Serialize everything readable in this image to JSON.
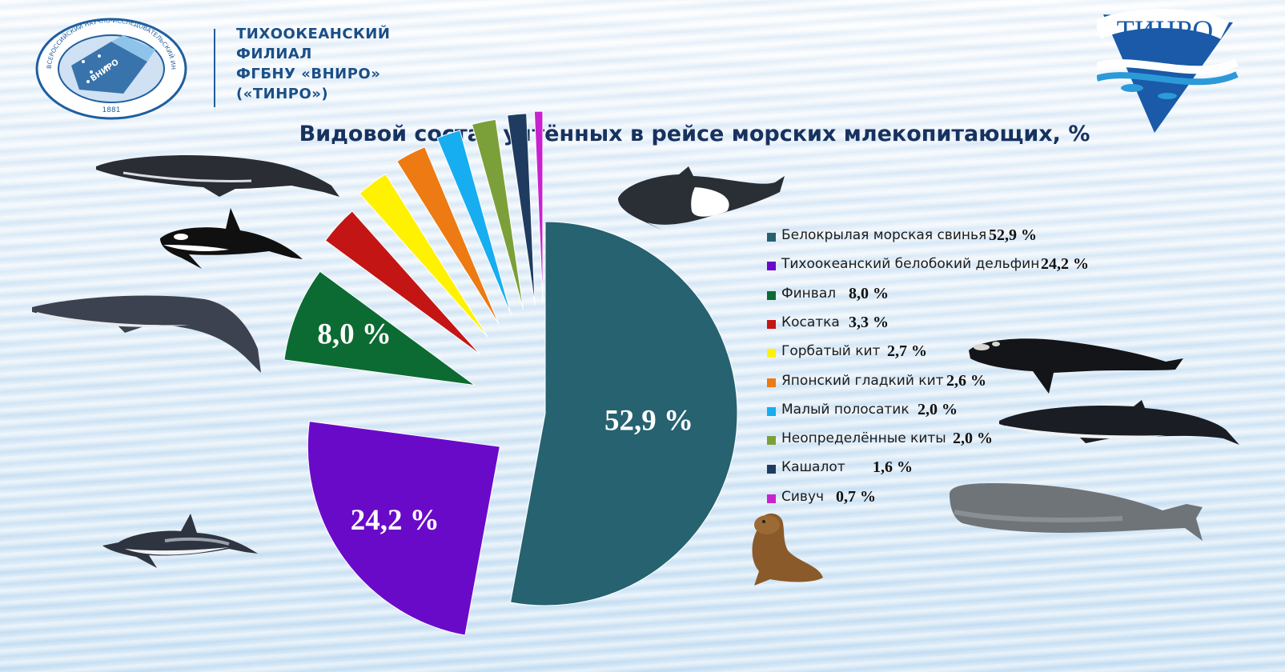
{
  "header": {
    "org_lines": [
      "ТИХООКЕАНСКИЙ",
      "ФИЛИАЛ",
      "ФГБНУ «ВНИРО»",
      "(«ТИНРО»)"
    ],
    "seal_text": "ВСЕРОССИЙСКИЙ НАУЧНО-ИССЛЕДОВАТЕЛЬСКИЙ ИНСТИТУТ РЫБНОГО ХОЗЯЙСТВА И ОКЕАНОГРАФИИ",
    "seal_center": "ВНИРО",
    "seal_year": "1881",
    "brand_logo_text": "ТИНРО"
  },
  "colors": {
    "header_text": "#1a4f86",
    "title_text": "#17325f"
  },
  "chart_data": {
    "type": "pie",
    "title": "Видовой состав учтённых в рейсе морских млекопитающих, %",
    "exploded": true,
    "legend_position": "right",
    "series": [
      {
        "name": "Белокрылая морская свинья",
        "value": 52.9,
        "label": "52,9 %",
        "color": "#266270"
      },
      {
        "name": "Тихоокеанский белобокий дельфин",
        "value": 24.2,
        "label": "24,2 %",
        "color": "#6a0ac9"
      },
      {
        "name": "Финвал",
        "value": 8.0,
        "label": "8,0 %",
        "color": "#0c6b32"
      },
      {
        "name": "Косатка",
        "value": 3.3,
        "label": "3,3 %",
        "color": "#c41515"
      },
      {
        "name": "Горбатый кит",
        "value": 2.7,
        "label": "2,7 %",
        "color": "#fff200"
      },
      {
        "name": "Японский гладкий кит",
        "value": 2.6,
        "label": "2,6 %",
        "color": "#ed7a12"
      },
      {
        "name": "Малый полосатик",
        "value": 2.0,
        "label": "2,0 %",
        "color": "#16aef0"
      },
      {
        "name": "Неопределённые киты",
        "value": 2.0,
        "label": "2,0 %",
        "color": "#7ba03a"
      },
      {
        "name": "Кашалот",
        "value": 1.6,
        "label": "1,6 %",
        "color": "#1f3c60"
      },
      {
        "name": "Сивуч",
        "value": 0.7,
        "label": "0,7 %",
        "color": "#c822cf"
      }
    ],
    "slice_labels_shown": [
      "52,9 %",
      "24,2 %",
      "8,0 %"
    ]
  },
  "illustrations": [
    "humpback-whale",
    "orca",
    "fin-whale",
    "pacific-white-sided-dolphin",
    "dalls-porpoise",
    "right-whale",
    "minke-whale",
    "sperm-whale",
    "steller-sea-lion"
  ]
}
